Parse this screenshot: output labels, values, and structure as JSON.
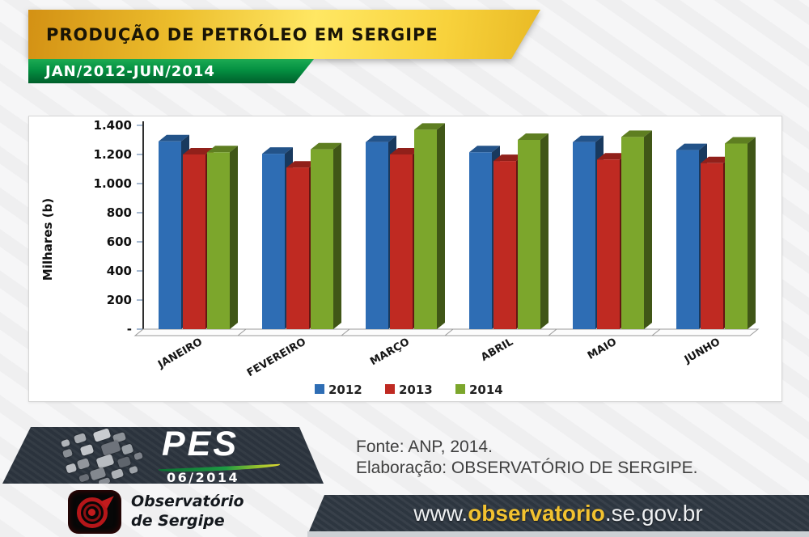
{
  "header": {
    "title": "PRODUÇÃO DE PETRÓLEO EM SERGIPE",
    "subtitle": "JAN/2012-JUN/2014"
  },
  "chart_data": {
    "type": "bar",
    "style": "3d-clustered-column",
    "title": "",
    "ylabel": "Milhares (b)",
    "categories": [
      "JANEIRO",
      "FEVEREIRO",
      "MARÇO",
      "ABRIL",
      "MAIO",
      "JUNHO"
    ],
    "series": [
      {
        "name": "2012",
        "color": "#2e6db4",
        "values": [
          1290,
          1205,
          1285,
          1215,
          1285,
          1230
        ]
      },
      {
        "name": "2013",
        "color": "#bf2a22",
        "values": [
          1200,
          1110,
          1200,
          1155,
          1165,
          1140
        ]
      },
      {
        "name": "2014",
        "color": "#7ca62c",
        "values": [
          1215,
          1235,
          1370,
          1300,
          1320,
          1275
        ]
      }
    ],
    "ylim": [
      0,
      1400
    ],
    "ytick_step": 200,
    "ytick_labels": [
      "-",
      "200",
      "400",
      "600",
      "800",
      "1.000",
      "1.200",
      "1.400"
    ],
    "legend_position": "bottom-center",
    "grid": false
  },
  "footer": {
    "pes_badge": {
      "acronym": "PES",
      "edition": "06/2014"
    },
    "source": {
      "line1": "Fonte: ANP, 2014.",
      "line2": "Elaboração: OBSERVATÓRIO DE SERGIPE."
    },
    "org_logo": {
      "line1": "Observatório",
      "line2": "de Sergipe"
    },
    "website": {
      "prefix": "www.",
      "highlight": "observatorio",
      "suffix": ".se.gov.br"
    }
  },
  "colors": {
    "banner_gold": "#f5c832",
    "banner_green": "#028a3d",
    "footer_dark": "#2b333d",
    "url_highlight": "#f2c230"
  }
}
